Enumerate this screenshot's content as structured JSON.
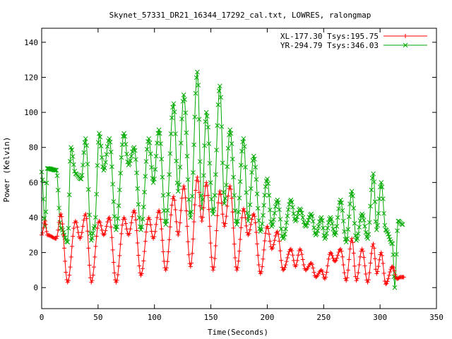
{
  "chart_data": {
    "type": "line",
    "title": "Skynet_57331_DR21_16344_17292_cal.txt, LOWRES, ralongmap",
    "xlabel": "Time(Seconds)",
    "ylabel": "Power (Kelvin)",
    "xlim": [
      0,
      350
    ],
    "ylim": [
      -12,
      148
    ],
    "xticks": [
      0,
      50,
      100,
      150,
      200,
      250,
      300,
      350
    ],
    "yticks": [
      0,
      20,
      40,
      60,
      80,
      100,
      120,
      140
    ],
    "grid": false,
    "legend_position": "top-right",
    "series": [
      {
        "name": "XL-177.30 Tsys:195.75",
        "color": "#ff0000",
        "marker": "plus",
        "peaks": [
          [
            0,
            30
          ],
          [
            3,
            38
          ],
          [
            5,
            30
          ],
          [
            13,
            28
          ],
          [
            17,
            42
          ],
          [
            23,
            3
          ],
          [
            30,
            38
          ],
          [
            34,
            28
          ],
          [
            39,
            42
          ],
          [
            44,
            3
          ],
          [
            51,
            38
          ],
          [
            55,
            30
          ],
          [
            60,
            40
          ],
          [
            66,
            3
          ],
          [
            73,
            40
          ],
          [
            77,
            30
          ],
          [
            82,
            44
          ],
          [
            88,
            7
          ],
          [
            95,
            40
          ],
          [
            99,
            28
          ],
          [
            104,
            44
          ],
          [
            110,
            10
          ],
          [
            117,
            52
          ],
          [
            121,
            30
          ],
          [
            126,
            58
          ],
          [
            132,
            12
          ],
          [
            138,
            63
          ],
          [
            142,
            38
          ],
          [
            146,
            60
          ],
          [
            152,
            10
          ],
          [
            158,
            55
          ],
          [
            162,
            35
          ],
          [
            167,
            58
          ],
          [
            173,
            10
          ],
          [
            179,
            45
          ],
          [
            183,
            30
          ],
          [
            188,
            42
          ],
          [
            194,
            8
          ],
          [
            200,
            35
          ],
          [
            204,
            22
          ],
          [
            209,
            32
          ],
          [
            214,
            10
          ],
          [
            221,
            22
          ],
          [
            225,
            12
          ],
          [
            229,
            22
          ],
          [
            234,
            10
          ],
          [
            239,
            14
          ],
          [
            243,
            6
          ],
          [
            248,
            10
          ],
          [
            251,
            5
          ],
          [
            256,
            20
          ],
          [
            260,
            15
          ],
          [
            265,
            22
          ],
          [
            270,
            4
          ],
          [
            275,
            28
          ],
          [
            279,
            4
          ],
          [
            284,
            22
          ],
          [
            289,
            3
          ],
          [
            294,
            25
          ],
          [
            297,
            8
          ],
          [
            301,
            20
          ],
          [
            305,
            2
          ],
          [
            311,
            12
          ],
          [
            315,
            5
          ],
          [
            318,
            6
          ],
          [
            321,
            6
          ]
        ]
      },
      {
        "name": "YR-294.79 Tsys:346.03",
        "color": "#00aa00",
        "marker": "x",
        "peaks": [
          [
            0,
            66
          ],
          [
            3,
            35
          ],
          [
            5,
            68
          ],
          [
            13,
            67
          ],
          [
            17,
            34
          ],
          [
            23,
            26
          ],
          [
            26,
            80
          ],
          [
            30,
            65
          ],
          [
            35,
            62
          ],
          [
            39,
            85
          ],
          [
            44,
            27
          ],
          [
            47,
            35
          ],
          [
            51,
            88
          ],
          [
            55,
            67
          ],
          [
            60,
            85
          ],
          [
            66,
            33
          ],
          [
            73,
            88
          ],
          [
            77,
            70
          ],
          [
            82,
            80
          ],
          [
            88,
            33
          ],
          [
            95,
            85
          ],
          [
            99,
            60
          ],
          [
            104,
            90
          ],
          [
            110,
            36
          ],
          [
            117,
            105
          ],
          [
            121,
            55
          ],
          [
            126,
            110
          ],
          [
            132,
            40
          ],
          [
            138,
            123
          ],
          [
            142,
            45
          ],
          [
            146,
            100
          ],
          [
            152,
            42
          ],
          [
            158,
            115
          ],
          [
            162,
            48
          ],
          [
            167,
            90
          ],
          [
            173,
            36
          ],
          [
            179,
            85
          ],
          [
            183,
            38
          ],
          [
            188,
            75
          ],
          [
            194,
            32
          ],
          [
            200,
            62
          ],
          [
            204,
            35
          ],
          [
            209,
            50
          ],
          [
            214,
            28
          ],
          [
            221,
            50
          ],
          [
            225,
            38
          ],
          [
            229,
            45
          ],
          [
            234,
            35
          ],
          [
            239,
            42
          ],
          [
            243,
            30
          ],
          [
            248,
            40
          ],
          [
            251,
            28
          ],
          [
            256,
            40
          ],
          [
            260,
            30
          ],
          [
            265,
            50
          ],
          [
            270,
            26
          ],
          [
            275,
            55
          ],
          [
            279,
            27
          ],
          [
            284,
            42
          ],
          [
            289,
            28
          ],
          [
            294,
            65
          ],
          [
            297,
            33
          ],
          [
            301,
            60
          ],
          [
            305,
            33
          ],
          [
            311,
            25
          ],
          [
            313,
            0
          ],
          [
            316,
            38
          ],
          [
            320,
            36
          ]
        ]
      }
    ]
  }
}
